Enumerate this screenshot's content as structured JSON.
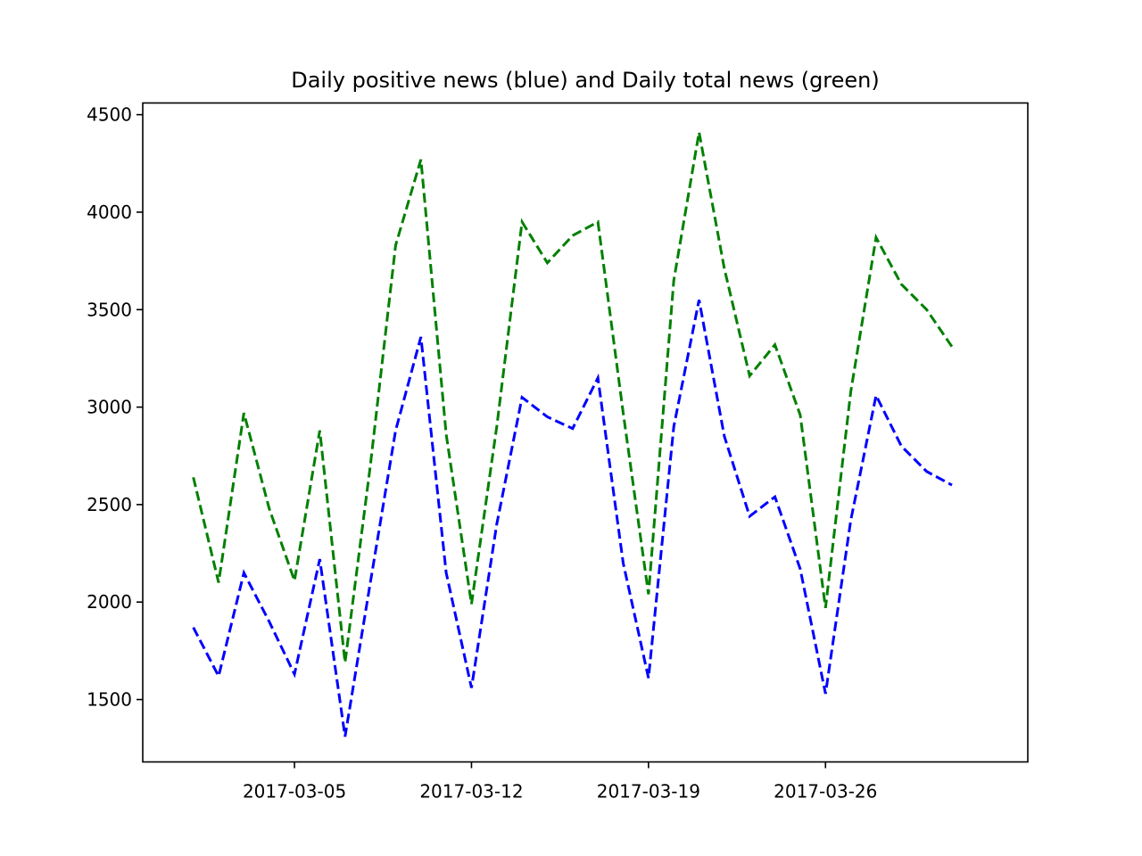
{
  "chart_data": {
    "type": "line",
    "title": "Daily positive news (blue) and Daily total news (green)",
    "xlabel": "",
    "ylabel": "",
    "ylim": [
      1180,
      4560
    ],
    "xlim": [
      "2017-02-27",
      "2017-04-03"
    ],
    "yticks": [
      1500,
      2000,
      2500,
      3000,
      3500,
      4000,
      4500
    ],
    "xticks": [
      "2017-03-05",
      "2017-03-12",
      "2017-03-19",
      "2017-03-26"
    ],
    "grid": false,
    "x": [
      "2017-03-01",
      "2017-03-02",
      "2017-03-03",
      "2017-03-04",
      "2017-03-05",
      "2017-03-06",
      "2017-03-07",
      "2017-03-08",
      "2017-03-09",
      "2017-03-10",
      "2017-03-11",
      "2017-03-12",
      "2017-03-13",
      "2017-03-14",
      "2017-03-15",
      "2017-03-16",
      "2017-03-17",
      "2017-03-18",
      "2017-03-19",
      "2017-03-20",
      "2017-03-21",
      "2017-03-22",
      "2017-03-23",
      "2017-03-24",
      "2017-03-25",
      "2017-03-26",
      "2017-03-27",
      "2017-03-28",
      "2017-03-29",
      "2017-03-30",
      "2017-03-31"
    ],
    "series": [
      {
        "color": "#0000ff",
        "style": "dashed",
        "values": [
          1870,
          1620,
          2150,
          1900,
          1630,
          2220,
          1310,
          2100,
          2880,
          3360,
          2150,
          1560,
          2400,
          3050,
          2950,
          2890,
          3150,
          2200,
          1610,
          2900,
          3550,
          2850,
          2440,
          2540,
          2170,
          1530,
          2420,
          3060,
          2800,
          2670,
          2600
        ]
      },
      {
        "color": "#008000",
        "style": "dashed",
        "values": [
          2640,
          2100,
          2970,
          2480,
          2110,
          2880,
          1690,
          2700,
          3830,
          4270,
          2860,
          1990,
          2900,
          3950,
          3740,
          3880,
          3950,
          2970,
          2040,
          3650,
          4410,
          3710,
          3160,
          3320,
          2960,
          1970,
          3080,
          3870,
          3630,
          3500,
          3310
        ]
      }
    ]
  }
}
